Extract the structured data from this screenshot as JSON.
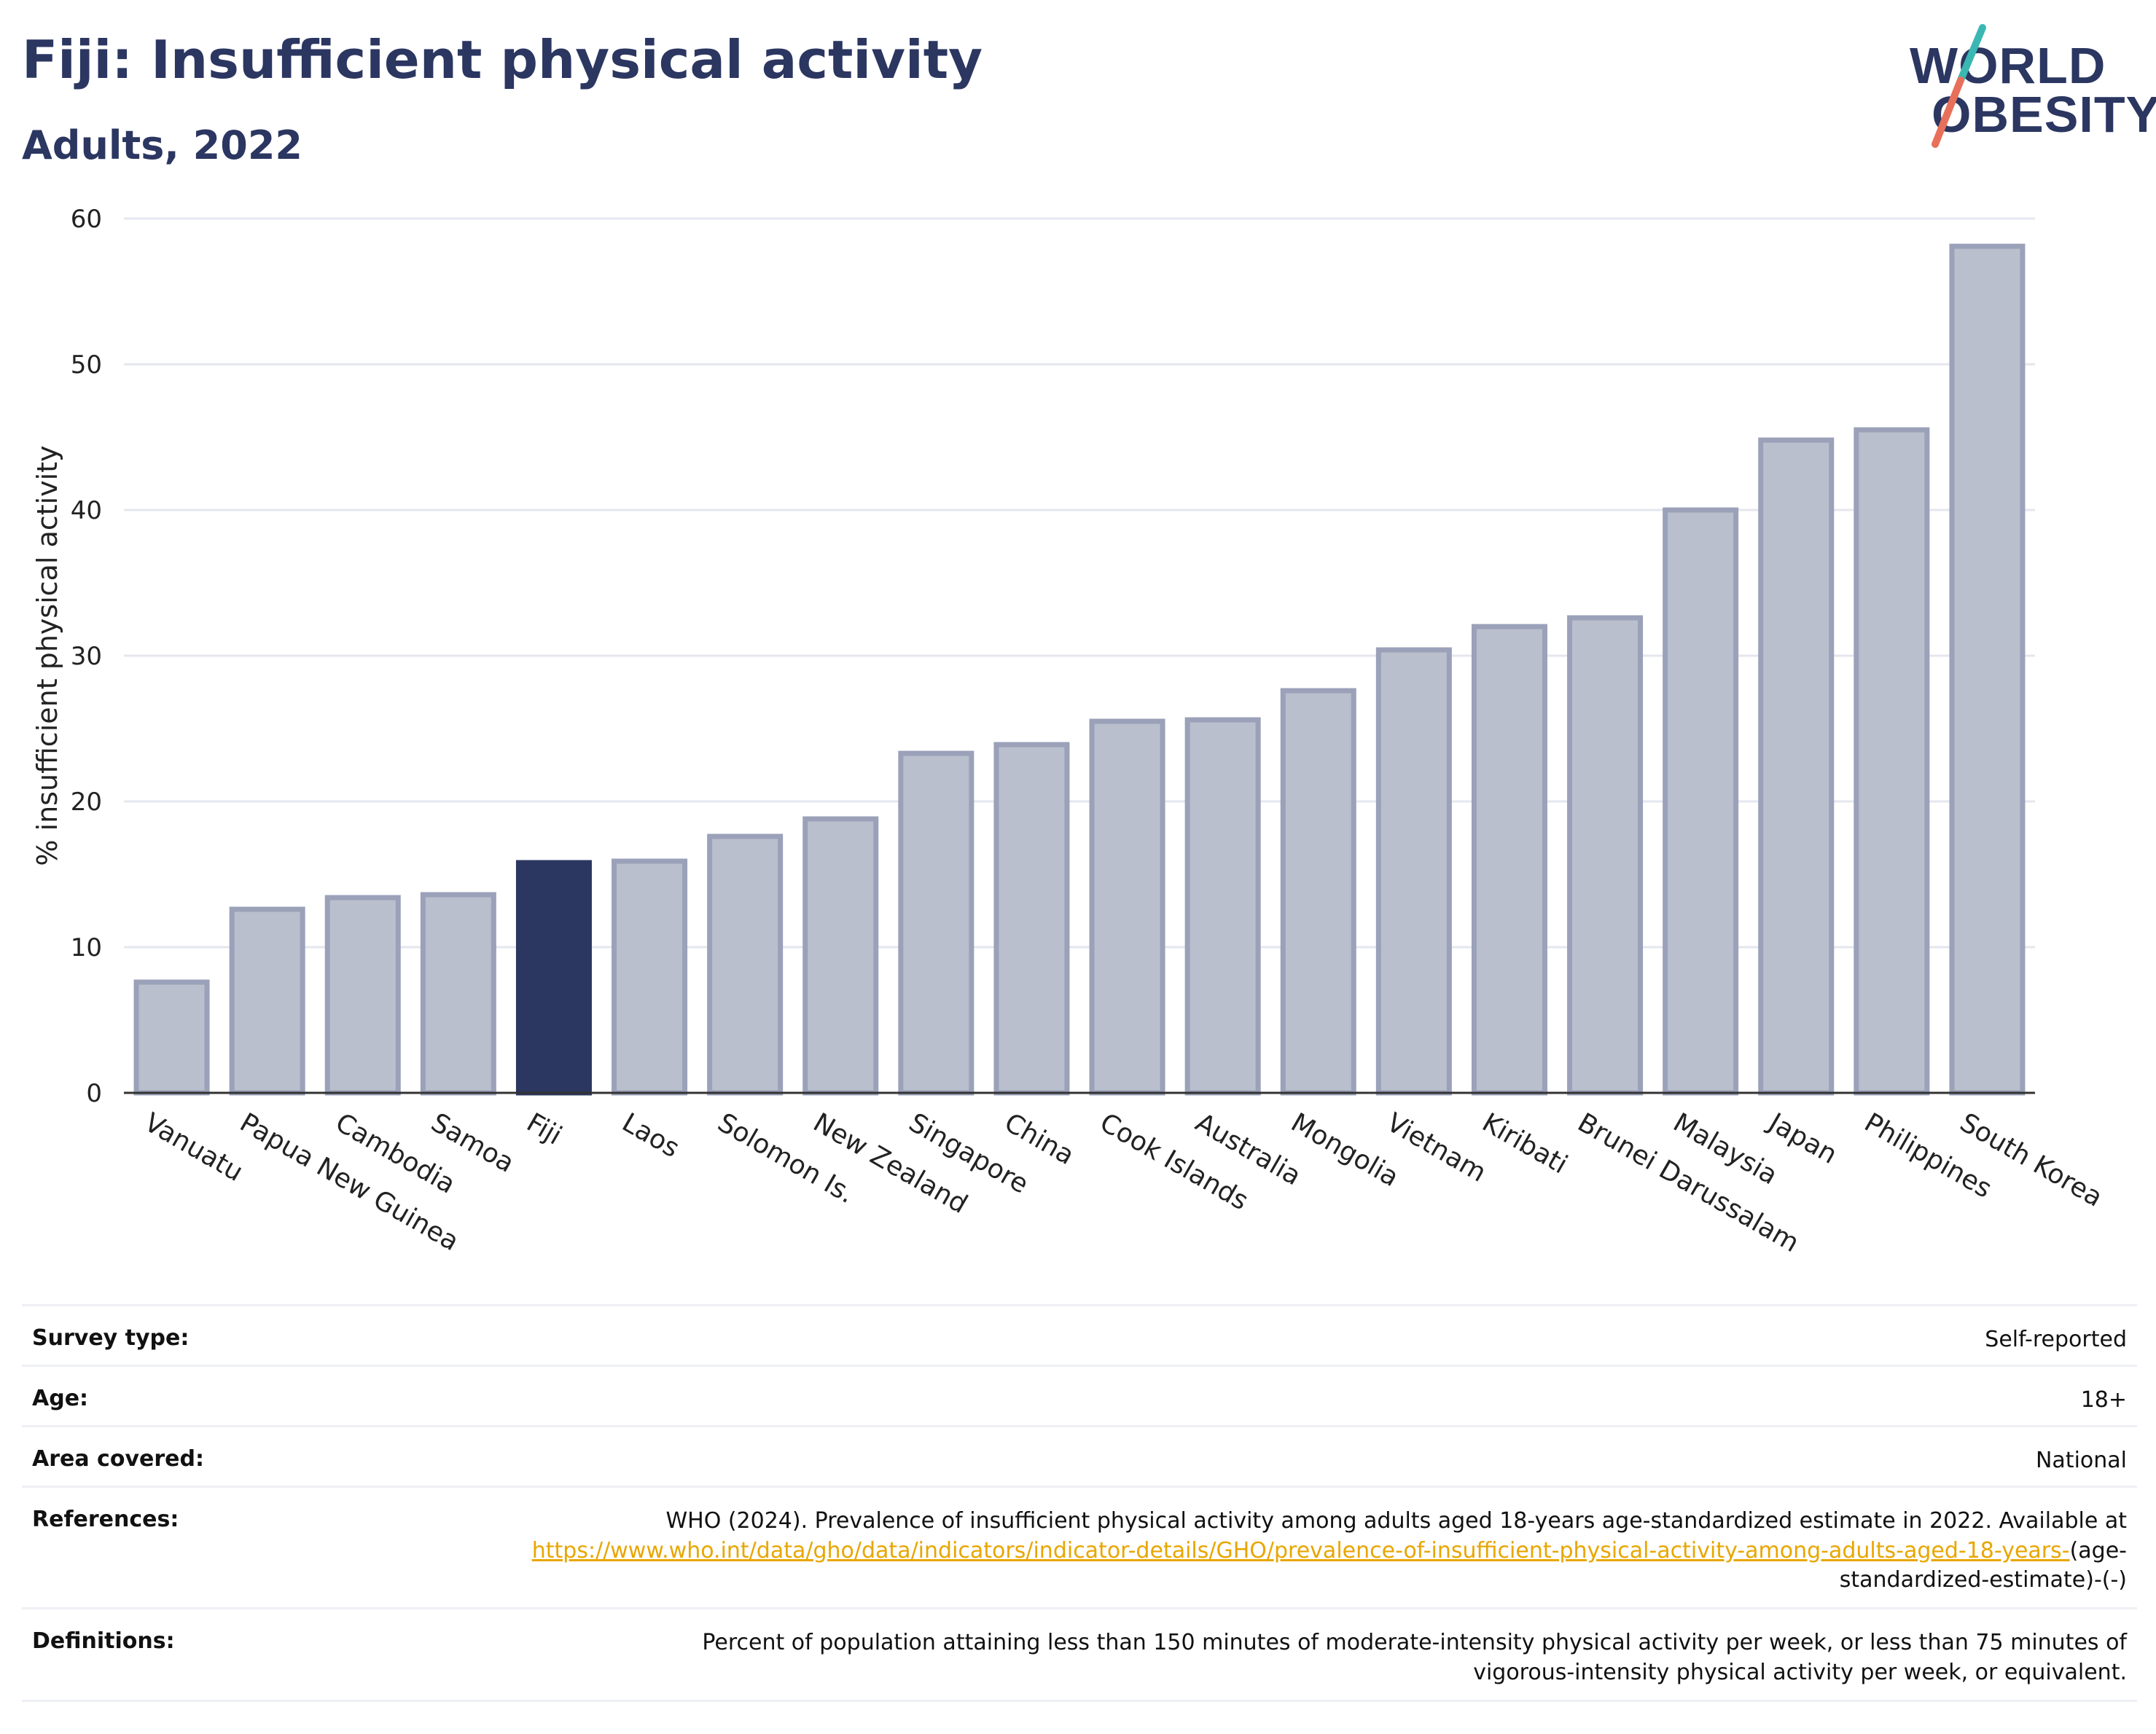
{
  "header": {
    "title": "Fiji: Insufficient physical activity",
    "subtitle": "Adults, 2022"
  },
  "logo": {
    "line1": "WORLD",
    "line2": "OBESITY",
    "text_color": "#2b3661",
    "accent_teal": "#3ab7b3",
    "accent_coral": "#e8705a"
  },
  "chart_data": {
    "type": "bar",
    "title": "Fiji: Insufficient physical activity",
    "subtitle": "Adults, 2022",
    "xlabel": "",
    "ylabel": "% insufficient physical activity",
    "ylim": [
      0,
      60
    ],
    "yticks": [
      0,
      10,
      20,
      30,
      40,
      50,
      60
    ],
    "grid": true,
    "highlight": "Fiji",
    "colors": {
      "bar": "#b9bfcd",
      "bar_stroke": "#9aa1b8",
      "highlight": "#2b3661"
    },
    "categories": [
      "Vanuatu",
      "Papua New Guinea",
      "Cambodia",
      "Samoa",
      "Fiji",
      "Laos",
      "Solomon Is.",
      "New Zealand",
      "Singapore",
      "China",
      "Cook Islands",
      "Australia",
      "Mongolia",
      "Vietnam",
      "Kiribati",
      "Brunei Darussalam",
      "Malaysia",
      "Japan",
      "Philippines",
      "South Korea"
    ],
    "values": [
      7.6,
      12.6,
      13.4,
      13.6,
      15.8,
      15.9,
      17.6,
      18.8,
      23.3,
      23.9,
      25.5,
      25.6,
      27.6,
      30.4,
      32.0,
      32.6,
      40.0,
      44.8,
      45.5,
      58.1
    ]
  },
  "meta": {
    "survey_type_label": "Survey type:",
    "survey_type_value": "Self-reported",
    "age_label": "Age:",
    "age_value": "18+",
    "area_label": "Area covered:",
    "area_value": "National",
    "references_label": "References:",
    "references_text": "WHO (2024). Prevalence of insufficient physical activity among adults aged 18-years age-standardized estimate in 2022. Available at",
    "references_link": "https://www.who.int/data/gho/data/indicators/indicator-details/GHO/prevalence-of-insufficient-physical-activity-among-adults-aged-18-years-",
    "references_suffix": "(age-standardized-estimate)-(-)",
    "definitions_label": "Definitions:",
    "definitions_value": "Percent of population attaining less than 150 minutes of moderate-intensity physical activity per week, or less than 75 minutes of vigorous-intensity physical activity per week, or equivalent."
  }
}
